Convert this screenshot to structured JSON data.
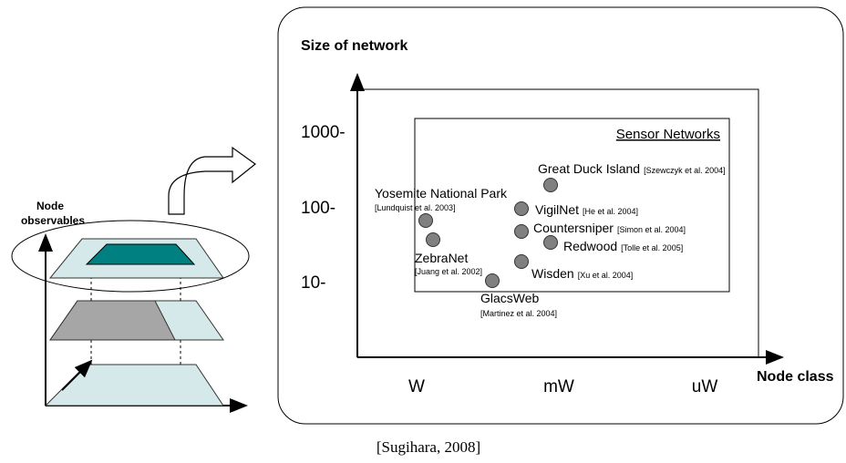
{
  "left_panel": {
    "label_lines": [
      "Node",
      "observables"
    ]
  },
  "chart": {
    "y_axis_title": "Size of network",
    "x_axis_title": "Node class",
    "y_labels": [
      "1000-",
      "100-",
      "10-"
    ],
    "x_labels": [
      "W",
      "mW",
      "uW"
    ],
    "region_label": "Sensor Networks",
    "projects": [
      {
        "name": "Great Duck Island",
        "ref": "[Szewczyk et al. 2004]"
      },
      {
        "name": "Yosemite National Park",
        "ref": "[Lundquist et al. 2003]"
      },
      {
        "name": "VigilNet",
        "ref": "[He et al. 2004]"
      },
      {
        "name": "Countersniper",
        "ref": "[Simon et al. 2004]"
      },
      {
        "name": "Redwood",
        "ref": "[Tolle et al. 2005]"
      },
      {
        "name": "ZebraNet",
        "ref": "[Juang et al. 2002]"
      },
      {
        "name": "Wisden",
        "ref": "[Xu et al. 2004]"
      },
      {
        "name": "GlacsWeb",
        "ref": "[Martinez et al. 2004]"
      }
    ]
  },
  "caption": "[Sugihara, 2008]"
}
